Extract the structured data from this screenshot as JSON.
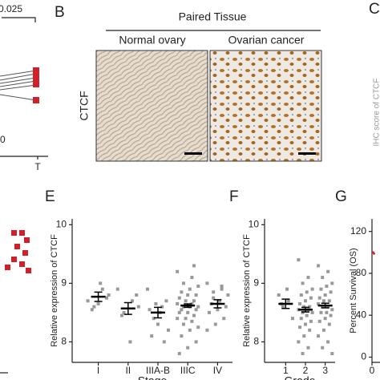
{
  "panel_labels": {
    "b": "B",
    "c": "C",
    "e": "E",
    "f": "F",
    "g": "G"
  },
  "panel_a": {
    "p_value": "0.025",
    "y_tick": "0",
    "x_tick": "T"
  },
  "panel_b": {
    "header": "Paired Tissue",
    "left_image": "Normal ovary",
    "right_image": "Ovarian cancer",
    "row_label": "CTCF"
  },
  "panel_c": {
    "y_label": "IHC score of CTCF"
  },
  "chart_data": [
    {
      "type": "strip",
      "y_label": "Relative expression of CTCF",
      "x_label": "Stage",
      "categories": [
        "I",
        "II",
        "IIIA-B",
        "IIIC",
        "IV"
      ],
      "color": "#999999",
      "points": [
        [
          8.7,
          8.9,
          8.6,
          8.8,
          9.0,
          8.55,
          8.75,
          8.65
        ],
        [
          8.9,
          8.7,
          8.5,
          8.6,
          8.0,
          8.45,
          8.8
        ],
        [
          8.9,
          8.6,
          8.4,
          8.2,
          8.5,
          8.1,
          8.7,
          8.3,
          8.55,
          8.0,
          8.65
        ],
        [
          9.2,
          9.1,
          9.0,
          8.95,
          8.9,
          8.85,
          8.8,
          8.8,
          8.75,
          8.7,
          8.7,
          8.65,
          8.65,
          8.6,
          8.6,
          8.6,
          8.55,
          8.55,
          8.5,
          8.5,
          8.45,
          8.4,
          8.4,
          8.35,
          8.3,
          8.25,
          8.2,
          8.1,
          8.0,
          7.9,
          7.8,
          9.3
        ],
        [
          9.0,
          8.9,
          8.85,
          8.8,
          8.7,
          8.65,
          8.6,
          8.55,
          8.5,
          8.4,
          8.3,
          8.2,
          8.95,
          8.75
        ]
      ],
      "means": [
        8.77,
        8.57,
        8.5,
        8.62,
        8.65
      ],
      "errors": [
        0.08,
        0.1,
        0.09,
        0.03,
        0.07
      ],
      "ylim": [
        7.65,
        10.1
      ],
      "yticks": [
        8,
        9,
        10
      ]
    },
    {
      "type": "strip",
      "y_label": "Relative expression of CTCF",
      "x_label": "Grade",
      "categories": [
        "1",
        "2",
        "3"
      ],
      "color": "#999999",
      "points": [
        [
          8.8,
          8.7,
          8.6,
          8.4,
          8.9,
          8.65
        ],
        [
          9.4,
          9.1,
          9.0,
          8.9,
          8.85,
          8.8,
          8.75,
          8.7,
          8.65,
          8.6,
          8.6,
          8.55,
          8.55,
          8.5,
          8.5,
          8.45,
          8.4,
          8.35,
          8.3,
          8.25,
          8.2,
          8.1,
          8.0,
          7.9,
          7.8
        ],
        [
          9.3,
          9.2,
          9.1,
          9.0,
          8.95,
          8.9,
          8.85,
          8.8,
          8.75,
          8.7,
          8.7,
          8.65,
          8.6,
          8.6,
          8.55,
          8.5,
          8.5,
          8.45,
          8.4,
          8.35,
          8.3,
          8.2,
          8.1,
          8.0,
          7.9,
          7.8
        ]
      ],
      "means": [
        8.65,
        8.55,
        8.62
      ],
      "errors": [
        0.08,
        0.04,
        0.04
      ],
      "ylim": [
        7.65,
        10.1
      ],
      "yticks": [
        8,
        9,
        10
      ]
    },
    {
      "type": "line",
      "y_label": "Percent Survival (OS)",
      "x": [
        0,
        1,
        2
      ],
      "series": [
        {
          "color": "#d0202a",
          "values": [
            100,
            100,
            98
          ]
        }
      ],
      "xlim": [
        0,
        60
      ],
      "xticks": [
        0
      ],
      "ylim": [
        -5,
        132
      ],
      "yticks": [
        0,
        40,
        80,
        120
      ]
    }
  ]
}
